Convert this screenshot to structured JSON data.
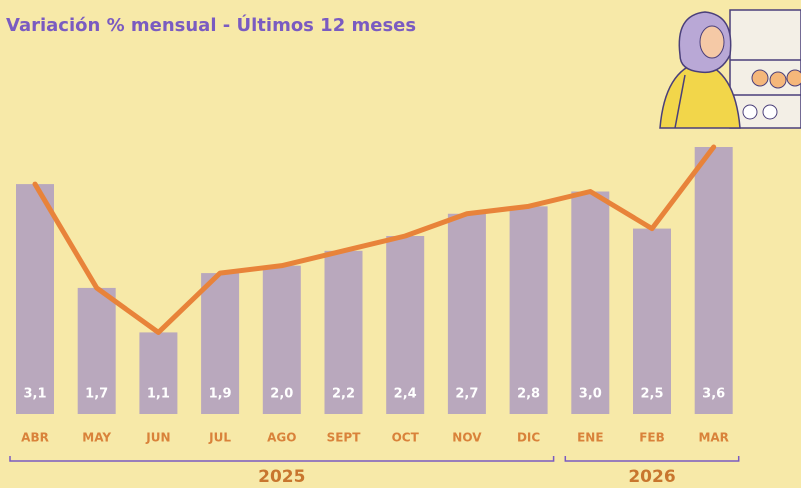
{
  "chart_data": {
    "type": "bar-line",
    "title": "Variación % mensual - Últimos 12 meses",
    "categories": [
      "ABR",
      "MAY",
      "JUN",
      "JUL",
      "AGO",
      "SEPT",
      "OCT",
      "NOV",
      "DIC",
      "ENE",
      "FEB",
      "MAR"
    ],
    "values": [
      3.1,
      1.7,
      1.1,
      1.9,
      2.0,
      2.2,
      2.4,
      2.7,
      2.8,
      3.0,
      2.5,
      3.6
    ],
    "value_labels": [
      "3,1",
      "1,7",
      "1,1",
      "1,9",
      "2,0",
      "2,2",
      "2,4",
      "2,7",
      "2,8",
      "3,0",
      "2,5",
      "3,6"
    ],
    "color": "#b9a8bd",
    "line_color": "#e8833a",
    "groups": [
      {
        "label": "2025",
        "from": "ABR",
        "to": "DIC"
      },
      {
        "label": "2026",
        "from": "ENE",
        "to": "MAR"
      }
    ]
  }
}
